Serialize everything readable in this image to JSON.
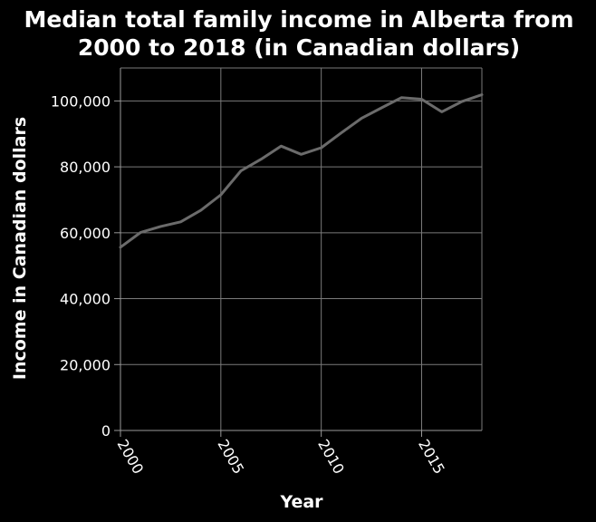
{
  "chart_data": {
    "type": "line",
    "title_lines": [
      "Median total family income in Alberta from",
      "2000 to 2018 (in Canadian dollars)"
    ],
    "xlabel": "Year",
    "ylabel": "Income in Canadian dollars",
    "x": [
      2000,
      2001,
      2002,
      2003,
      2004,
      2005,
      2006,
      2007,
      2008,
      2009,
      2010,
      2011,
      2012,
      2013,
      2014,
      2015,
      2016,
      2017,
      2018
    ],
    "series": [
      {
        "values": [
          55600,
          60100,
          61900,
          63300,
          66800,
          71500,
          78800,
          82300,
          86300,
          83800,
          85800,
          90300,
          94700,
          97900,
          101000,
          100500,
          96700,
          99800,
          101900
        ]
      }
    ],
    "xlim": [
      2000,
      2018
    ],
    "ylim": [
      0,
      110000
    ],
    "x_ticks": [
      2000,
      2005,
      2010,
      2015
    ],
    "x_tick_labels": [
      "2000",
      "2005",
      "2010",
      "2015"
    ],
    "y_ticks": [
      0,
      20000,
      40000,
      60000,
      80000,
      100000
    ],
    "y_tick_labels": [
      "0",
      "20,000",
      "40,000",
      "60,000",
      "80,000",
      "100,000"
    ],
    "grid": true,
    "legend": "none",
    "colors": {
      "background": "#000000",
      "line": "#6b6b6b",
      "grid": "#7a7a7a",
      "text": "#ffffff"
    }
  }
}
